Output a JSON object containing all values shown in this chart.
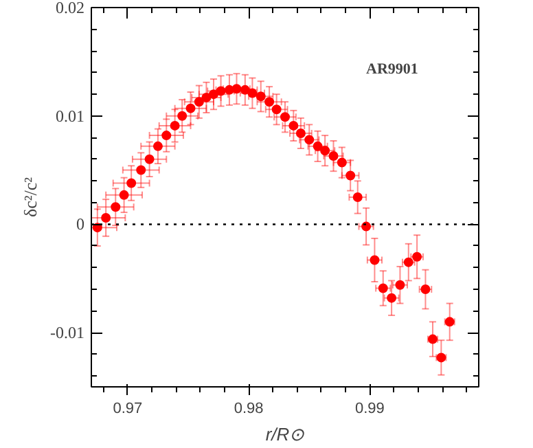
{
  "chart_data": {
    "type": "scatter",
    "xlabel": "r/R⊙",
    "ylabel": "δc²/c²",
    "annotations": [
      "AR9901"
    ],
    "x": [
      0.9675,
      0.9682,
      0.969,
      0.9697,
      0.9703,
      0.9711,
      0.9718,
      0.9725,
      0.9732,
      0.9739,
      0.9745,
      0.9752,
      0.9759,
      0.9765,
      0.9771,
      0.9777,
      0.9784,
      0.979,
      0.9797,
      0.9803,
      0.981,
      0.9817,
      0.9823,
      0.983,
      0.9837,
      0.9843,
      0.985,
      0.9857,
      0.9863,
      0.987,
      0.9877,
      0.9884,
      0.989,
      0.9897,
      0.9904,
      0.9911,
      0.9918,
      0.9925,
      0.9932,
      0.9939,
      0.9946,
      0.9952,
      0.9959,
      0.9966
    ],
    "series": [
      {
        "color": "#ff0000",
        "values": [
          -0.0003,
          0.0006,
          0.0016,
          0.0027,
          0.0038,
          0.005,
          0.006,
          0.0072,
          0.0082,
          0.0091,
          0.01,
          0.0107,
          0.0113,
          0.0117,
          0.012,
          0.0123,
          0.0124,
          0.0125,
          0.0124,
          0.0121,
          0.0118,
          0.0113,
          0.0106,
          0.0099,
          0.0091,
          0.0084,
          0.0078,
          0.0072,
          0.0068,
          0.0063,
          0.0057,
          0.0045,
          0.0025,
          -0.0002,
          -0.0033,
          -0.0059,
          -0.0068,
          -0.0056,
          -0.0035,
          -0.003,
          -0.006,
          -0.0106,
          -0.0123,
          -0.009
        ],
        "errors": [
          0.0017,
          0.0017,
          0.0017,
          0.0016,
          0.0016,
          0.0016,
          0.0016,
          0.0016,
          0.0015,
          0.0015,
          0.0015,
          0.0015,
          0.0015,
          0.0014,
          0.0014,
          0.0014,
          0.0014,
          0.0014,
          0.0014,
          0.0014,
          0.0014,
          0.0014,
          0.0014,
          0.0014,
          0.0014,
          0.0014,
          0.0014,
          0.0014,
          0.0014,
          0.0014,
          0.0014,
          0.0014,
          0.0015,
          0.0017,
          0.002,
          0.0016,
          0.0016,
          0.0017,
          0.0017,
          0.002,
          0.0018,
          0.0016,
          0.0016,
          0.0017
        ],
        "xerrors": [
          0.0016,
          0.0016,
          0.0015,
          0.0015,
          0.0015,
          0.0015,
          0.0014,
          0.0014,
          0.0014,
          0.0013,
          0.0013,
          0.0013,
          0.0012,
          0.0012,
          0.0012,
          0.0011,
          0.0011,
          0.0011,
          0.001,
          0.001,
          0.001,
          0.001,
          0.0009,
          0.0009,
          0.0009,
          0.0009,
          0.0008,
          0.0008,
          0.0008,
          0.0008,
          0.0007,
          0.0007,
          0.0007,
          0.0006,
          0.0006,
          0.0006,
          0.0006,
          0.0006,
          0.0005,
          0.0005,
          0.0005,
          0.0004,
          0.0004,
          0.0004
        ]
      }
    ],
    "marker": "circle",
    "xlim": [
      0.967,
      0.999
    ],
    "ylim": [
      -0.015,
      0.02
    ],
    "xticks": [
      0.97,
      0.98,
      0.99
    ],
    "yticks": [
      -0.01,
      0,
      0.01,
      0.02
    ],
    "ref_lines": [
      {
        "axis": "y",
        "value": 0,
        "color": "#000000",
        "line_style": "dotted"
      }
    ],
    "grid": false
  }
}
